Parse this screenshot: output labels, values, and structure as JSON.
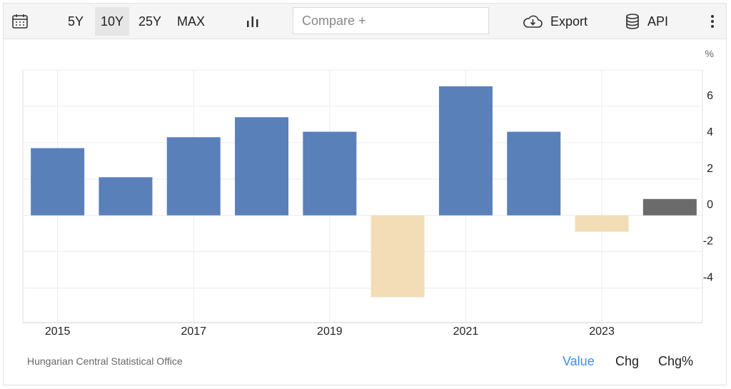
{
  "toolbar": {
    "ranges": [
      "5Y",
      "10Y",
      "25Y",
      "MAX"
    ],
    "active_range": "10Y",
    "compare_placeholder": "Compare +",
    "export_label": "Export",
    "api_label": "API"
  },
  "chart_data": {
    "type": "bar",
    "categories": [
      "2015",
      "2016",
      "2017",
      "2018",
      "2019",
      "2020",
      "2021",
      "2022",
      "2023",
      "2024"
    ],
    "values": [
      3.7,
      2.1,
      4.3,
      5.4,
      4.6,
      -4.5,
      7.1,
      4.6,
      -0.9,
      0.9
    ],
    "x_tick_labels": [
      "2015",
      "2017",
      "2019",
      "2021",
      "2023"
    ],
    "y_ticks": [
      -4,
      -2,
      0,
      2,
      4,
      6
    ],
    "ylim": [
      -5.9,
      8
    ],
    "y_unit": "%",
    "grid": true,
    "colors": {
      "positive": "#5a80ba",
      "negative": "#f2ddb7",
      "latest": "#6b6b6b"
    }
  },
  "footer": {
    "source": "Hungarian Central Statistical Office",
    "tabs": [
      "Value",
      "Chg",
      "Chg%"
    ],
    "active_tab": "Value"
  }
}
